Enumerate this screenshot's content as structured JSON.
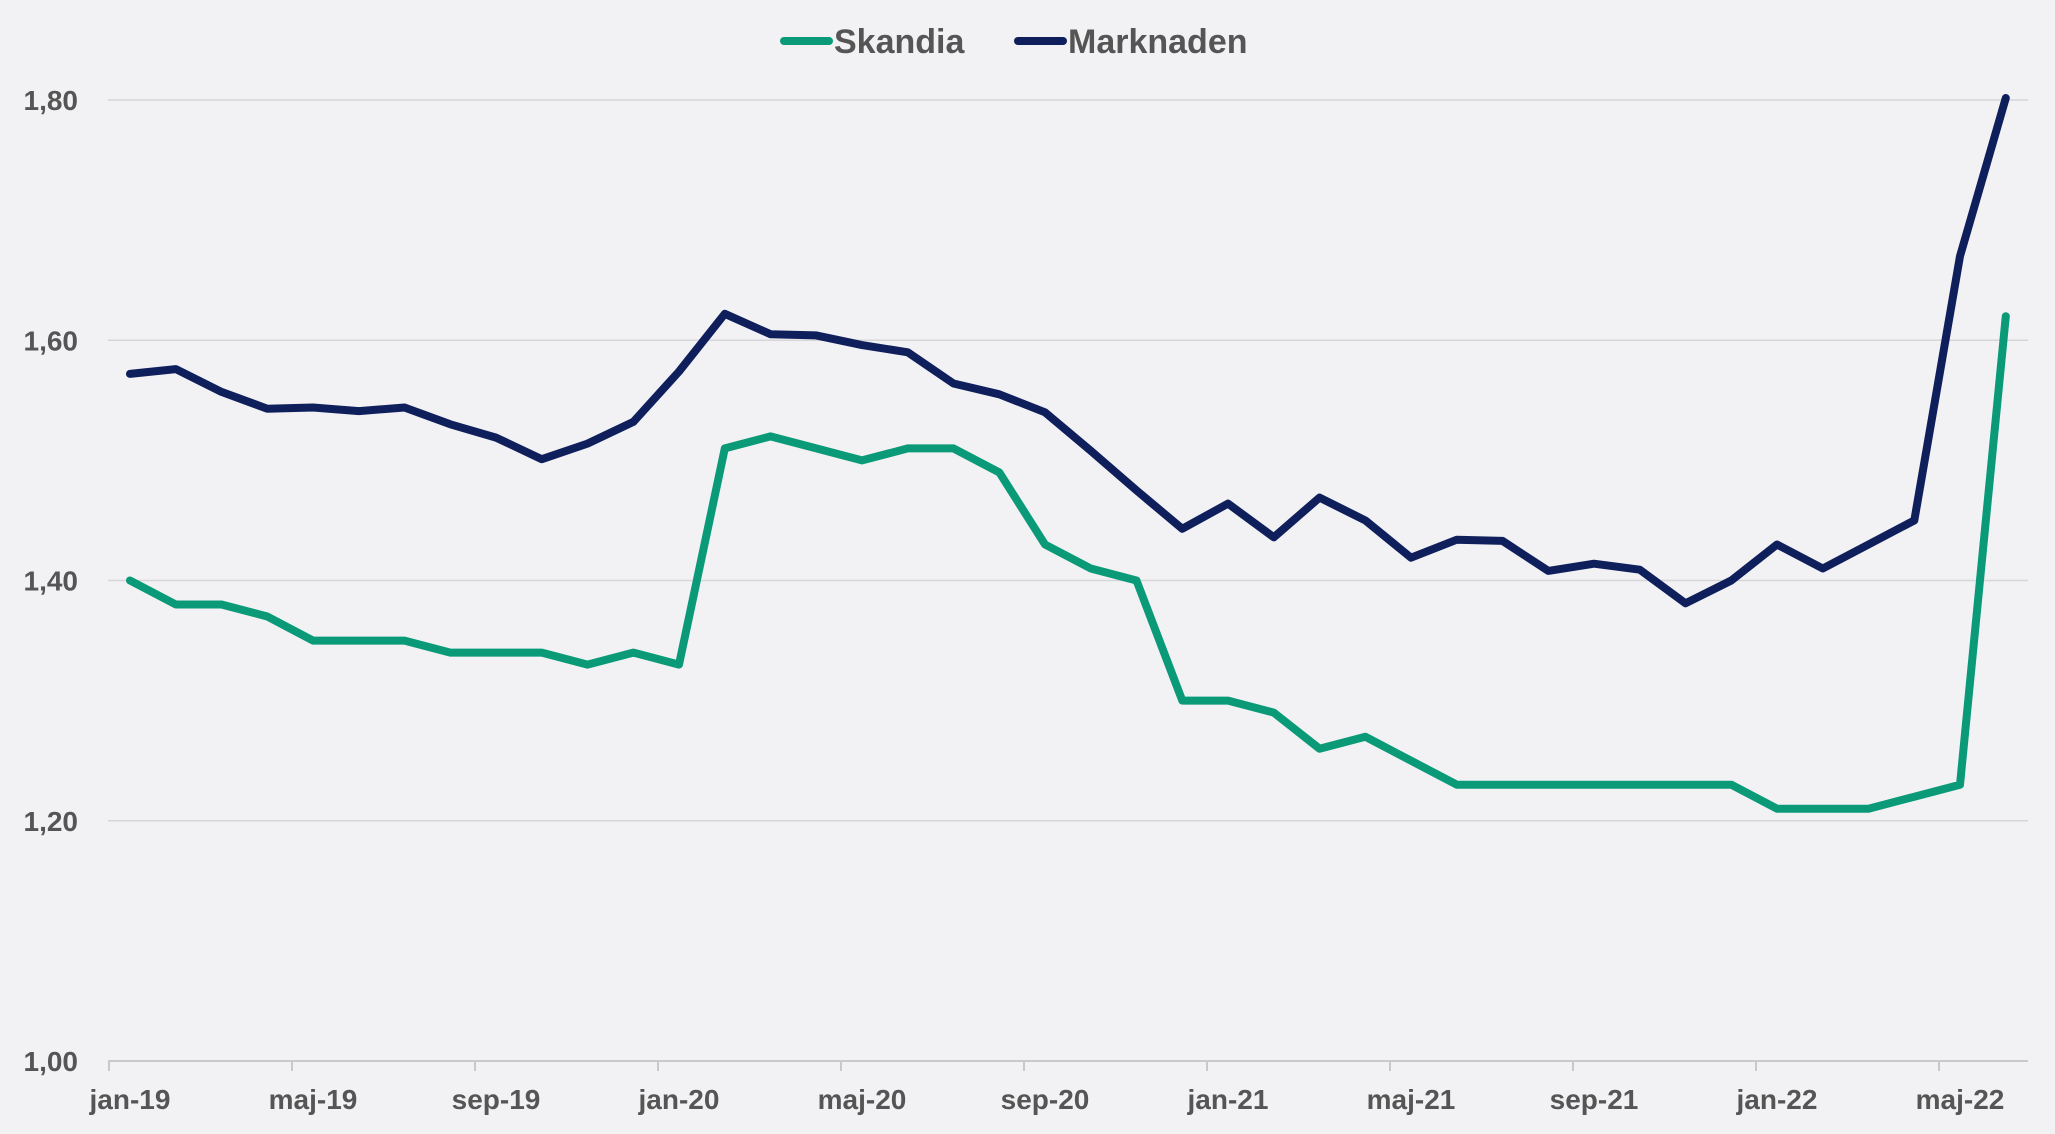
{
  "chart_data": {
    "type": "line",
    "title": "",
    "xlabel": "",
    "ylabel": "",
    "ylim": [
      1.0,
      1.8
    ],
    "y_ticks": [
      "1,00",
      "1,20",
      "1,40",
      "1,60",
      "1,80"
    ],
    "y_tick_values": [
      1.0,
      1.2,
      1.4,
      1.6,
      1.8
    ],
    "x_tick_labels": [
      "jan-19",
      "maj-19",
      "sep-19",
      "jan-20",
      "maj-20",
      "sep-20",
      "jan-21",
      "maj-21",
      "sep-21",
      "jan-22",
      "maj-22"
    ],
    "grid": true,
    "legend_position": "top",
    "x": [
      "jan-19",
      "feb-19",
      "mar-19",
      "apr-19",
      "maj-19",
      "jun-19",
      "jul-19",
      "aug-19",
      "sep-19",
      "okt-19",
      "nov-19",
      "dec-19",
      "jan-20",
      "feb-20",
      "mar-20",
      "apr-20",
      "maj-20",
      "jun-20",
      "jul-20",
      "aug-20",
      "sep-20",
      "okt-20",
      "nov-20",
      "dec-20",
      "jan-21",
      "feb-21",
      "mar-21",
      "apr-21",
      "maj-21",
      "jun-21",
      "jul-21",
      "aug-21",
      "sep-21",
      "okt-21",
      "nov-21",
      "dec-21",
      "jan-22",
      "feb-22",
      "mar-22",
      "apr-22",
      "maj-22",
      "jun-22"
    ],
    "series": [
      {
        "name": "Skandia",
        "color": "#0a9a78",
        "values": [
          1.4,
          1.38,
          1.38,
          1.37,
          1.35,
          1.35,
          1.35,
          1.34,
          1.34,
          1.34,
          1.33,
          1.34,
          1.33,
          1.51,
          1.52,
          1.51,
          1.5,
          1.51,
          1.51,
          1.49,
          1.43,
          1.41,
          1.4,
          1.3,
          1.3,
          1.29,
          1.26,
          1.27,
          1.25,
          1.23,
          1.23,
          1.23,
          1.23,
          1.23,
          1.23,
          1.23,
          1.21,
          1.21,
          1.21,
          1.22,
          1.23,
          1.62
        ]
      },
      {
        "name": "Marknaden",
        "color": "#0f1f5c",
        "values": [
          1.572,
          1.576,
          1.557,
          1.543,
          1.544,
          1.541,
          1.544,
          1.53,
          1.519,
          1.501,
          1.514,
          1.532,
          1.574,
          1.622,
          1.605,
          1.604,
          1.596,
          1.59,
          1.564,
          1.555,
          1.54,
          1.508,
          1.475,
          1.443,
          1.464,
          1.436,
          1.469,
          1.45,
          1.419,
          1.434,
          1.433,
          1.408,
          1.414,
          1.409,
          1.381,
          1.4,
          1.43,
          1.41,
          1.43,
          1.45,
          1.67,
          1.81
        ]
      }
    ]
  }
}
